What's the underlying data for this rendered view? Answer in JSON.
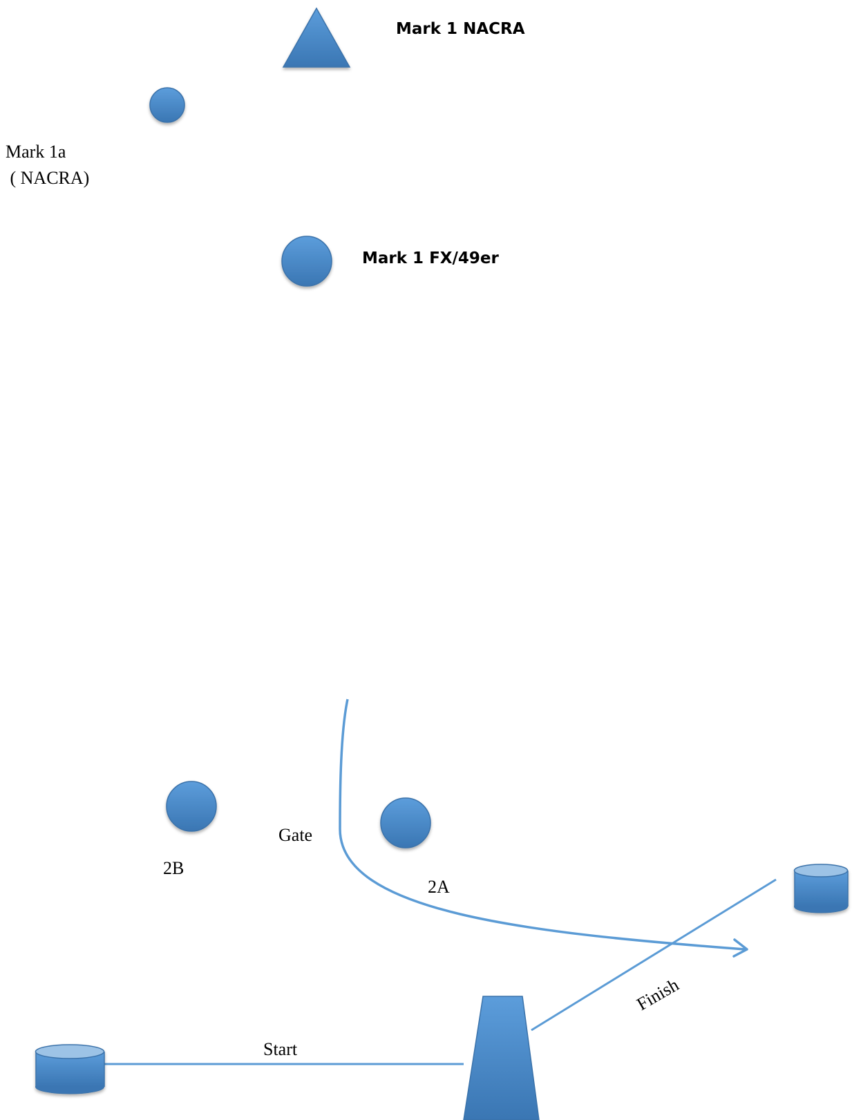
{
  "labels": {
    "mark1_nacra": "Mark 1 NACRA",
    "mark1a_line1": "Mark 1a",
    "mark1a_line2": " ( NACRA)",
    "mark1_fx49er": "Mark 1 FX/49er",
    "gate": "Gate",
    "mark_2b": "2B",
    "mark_2a": "2A",
    "start": "Start",
    "finish": "Finish"
  },
  "colors": {
    "mark_fill_light": "#5b9bd9",
    "mark_fill_dark": "#3b78b6",
    "mark_stroke": "#3a72aa",
    "cylinder_top": "#9dc3e6",
    "course_line": "#5b9bd5"
  }
}
